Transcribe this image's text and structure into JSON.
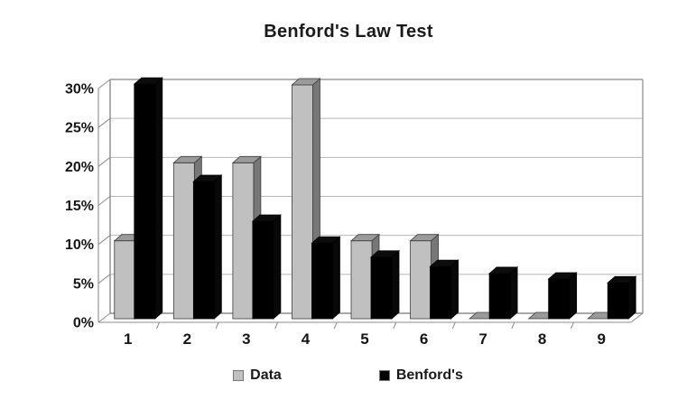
{
  "chart_data": {
    "type": "bar",
    "variant": "3d-clustered",
    "title": "Benford's Law Test",
    "categories": [
      "1",
      "2",
      "3",
      "4",
      "5",
      "6",
      "7",
      "8",
      "9"
    ],
    "series": [
      {
        "name": "Data",
        "color": "#c0c0c0",
        "values": [
          10,
          20,
          20,
          30,
          10,
          10,
          0,
          0,
          0
        ]
      },
      {
        "name": "Benford's",
        "color": "#000000",
        "values": [
          30.1,
          17.6,
          12.5,
          9.7,
          7.9,
          6.7,
          5.8,
          5.1,
          4.6
        ]
      }
    ],
    "y_axis": {
      "min": 0,
      "max": 30,
      "tick_step": 5,
      "tick_labels": [
        "0%",
        "5%",
        "10%",
        "15%",
        "20%",
        "25%",
        "30%"
      ],
      "format": "percent"
    },
    "grid": true,
    "legend": {
      "position": "bottom"
    },
    "background": "#ffffff",
    "gridline_color": "#b6b6b6",
    "axis_color": "#8c8c8c"
  }
}
